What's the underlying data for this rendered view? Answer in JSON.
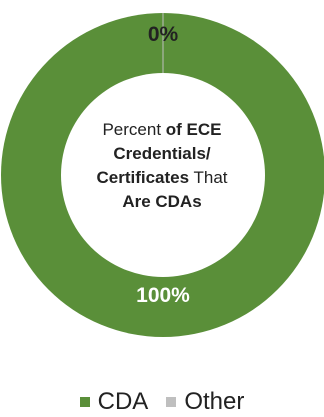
{
  "chart_data": {
    "type": "pie",
    "donut": true,
    "center_label": {
      "prefix": "Percent ",
      "bold_line1": "of ECE",
      "bold_line2": "Credentials/",
      "bold_line3": "Certificates",
      "normal_line3": " That",
      "bold_line4": "Are CDAs"
    },
    "slices": [
      {
        "label": "CDA",
        "value": 100,
        "display": "100%",
        "color": "#5a8f39"
      },
      {
        "label": "Other",
        "value": 0,
        "display": "0%",
        "color": "#bfbfbf"
      }
    ],
    "legend": {
      "position": "bottom",
      "items": [
        {
          "label": "CDA",
          "color": "#5a8f39"
        },
        {
          "label": "Other",
          "color": "#bfbfbf"
        }
      ]
    }
  }
}
